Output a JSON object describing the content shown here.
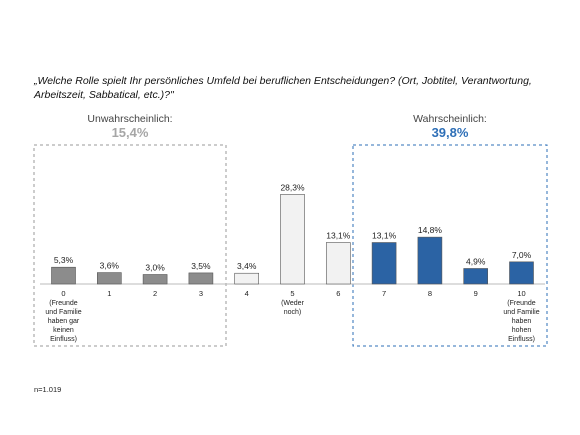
{
  "question": "„Welche Rolle spielt Ihr persönliches Umfeld bei beruflichen Entscheidungen? (Ort, Jobtitel, Verantwortung, Arbeitszeit, Sabbatical, etc.)?\"",
  "groups": {
    "unlikely": {
      "label": "Unwahrscheinlich:",
      "value": "15,4%",
      "color": "#a6a6a6"
    },
    "likely": {
      "label": "Wahrscheinlich:",
      "value": "39,8%",
      "color": "#2e6fb7"
    }
  },
  "footnote": "n=1.019",
  "colors": {
    "unlikely_bar": "#8c8c8c",
    "neutral_bar": "#f2f2f2",
    "likely_bar": "#2b63a4",
    "bar_outline": "#555555",
    "unlikely_box": "#9a9a9a",
    "likely_box": "#2e6fb7"
  },
  "chart_data": {
    "type": "bar",
    "categories": [
      "0",
      "1",
      "2",
      "3",
      "4",
      "5",
      "6",
      "7",
      "8",
      "9",
      "10"
    ],
    "category_notes": {
      "0": [
        "(Freunde",
        "und Familie",
        "haben gar",
        "keinen",
        "Einfluss)"
      ],
      "5": [
        "(Weder",
        "noch)"
      ],
      "10": [
        "(Freunde",
        "und Familie",
        "haben",
        "hohen",
        "Einfluss)"
      ]
    },
    "values": [
      5.3,
      3.6,
      3.0,
      3.5,
      3.4,
      28.3,
      13.1,
      13.1,
      14.8,
      4.9,
      7.0
    ],
    "value_labels": [
      "5,3%",
      "3,6%",
      "3,0%",
      "3,5%",
      "3,4%",
      "28,3%",
      "13,1%",
      "13,1%",
      "14,8%",
      "4,9%",
      "7,0%"
    ],
    "groups": [
      "unlikely",
      "unlikely",
      "unlikely",
      "unlikely",
      "neutral",
      "neutral",
      "neutral",
      "likely",
      "likely",
      "likely",
      "likely"
    ],
    "title": "",
    "xlabel": "",
    "ylabel": "",
    "ylim": [
      0,
      30
    ],
    "grid": false,
    "legend": "none"
  }
}
